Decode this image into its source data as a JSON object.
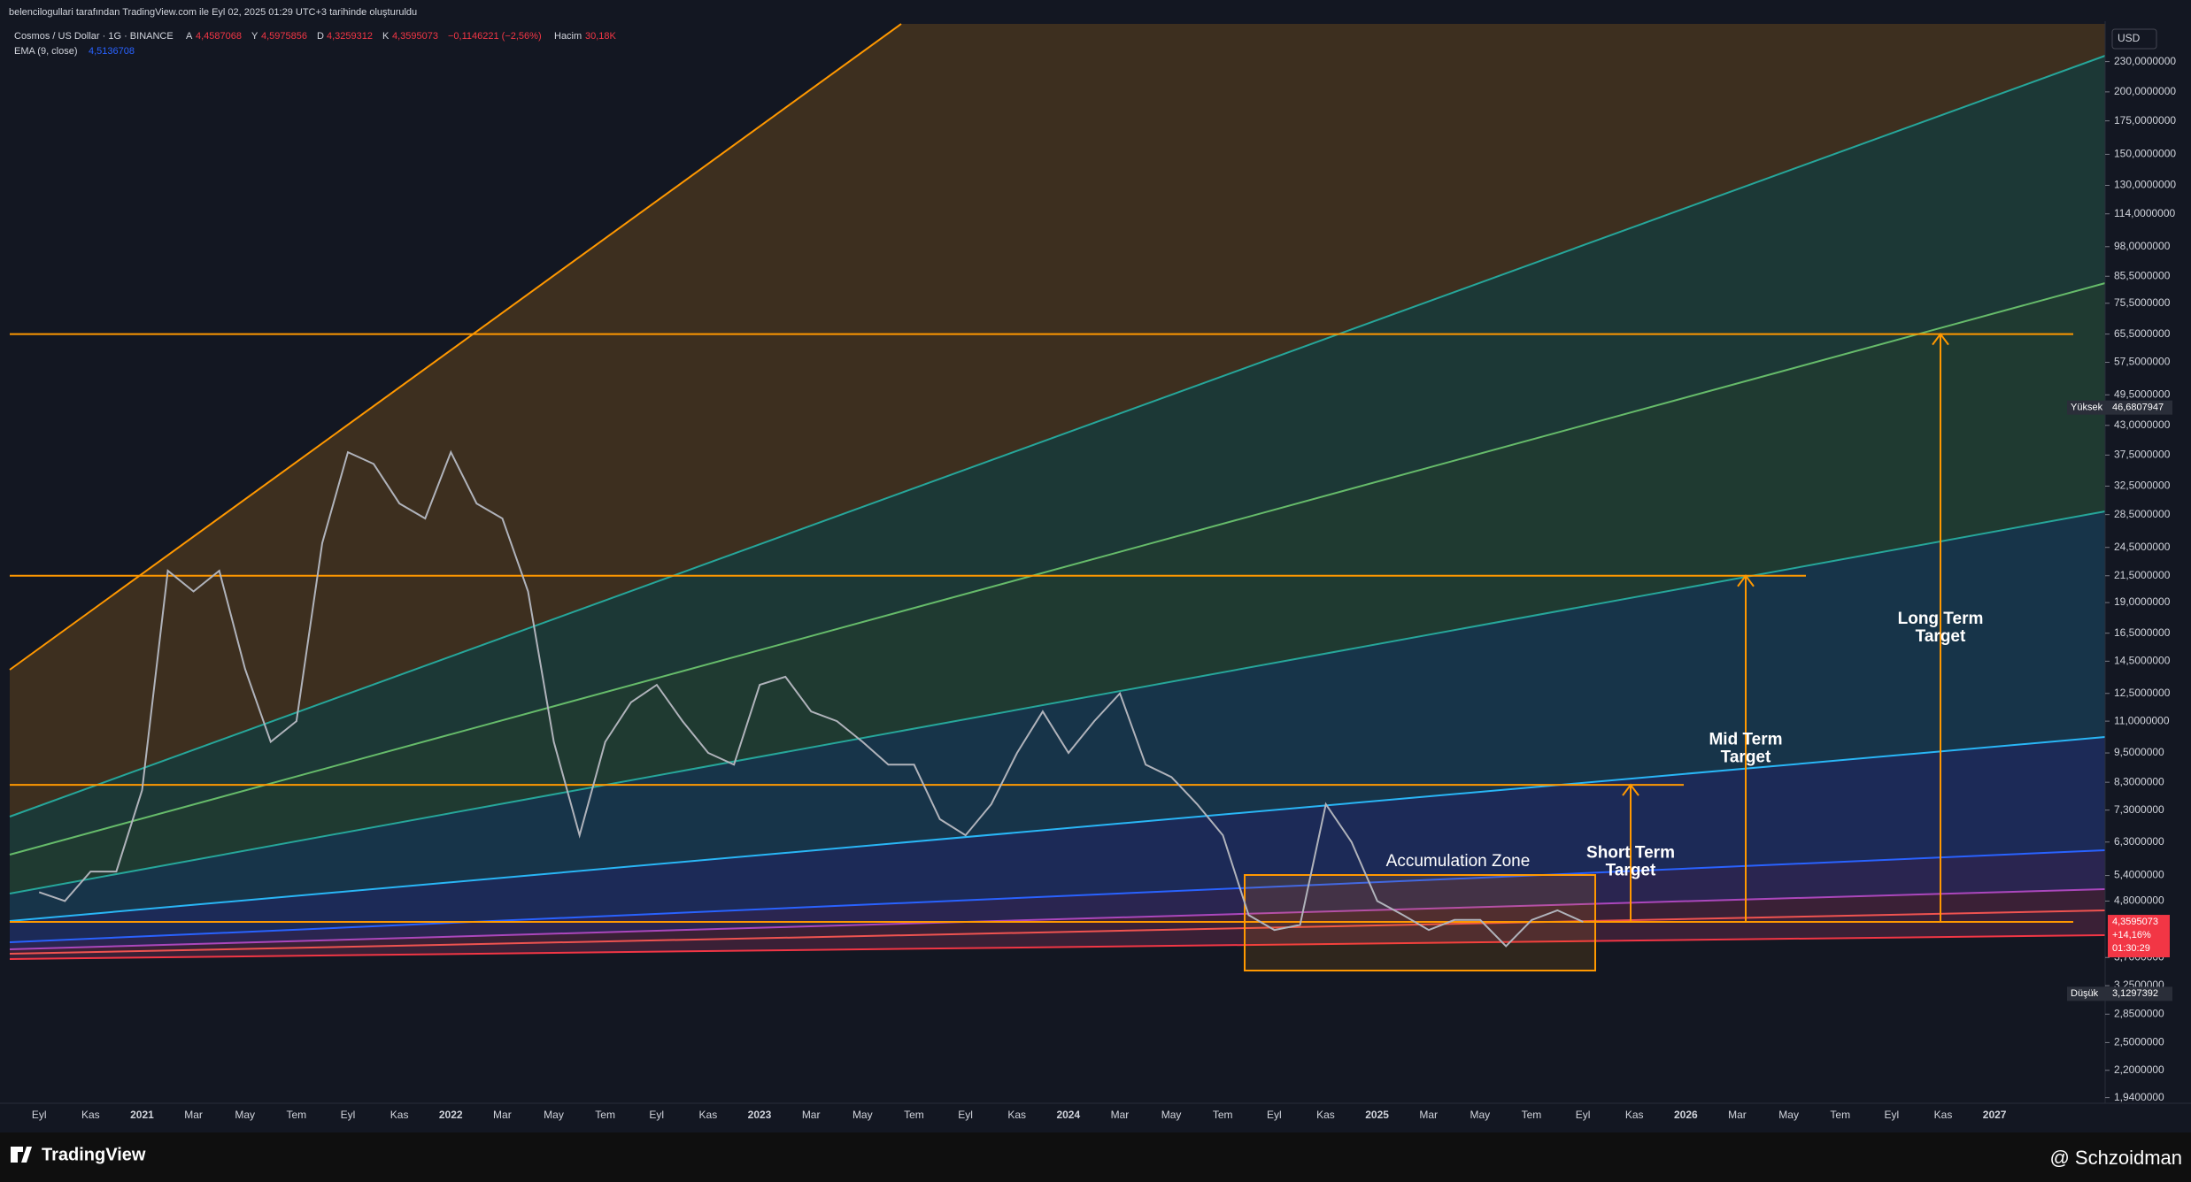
{
  "header": {
    "credit": "belencilogullari tarafından TradingView.com ile Eyl 02, 2025 01:29 UTC+3 tarihinde oluşturuldu"
  },
  "legend": {
    "symbol": "Cosmos / US Dollar · 1G · BINANCE",
    "ohlc": [
      {
        "label": "A",
        "value": "4,4587068"
      },
      {
        "label": "Y",
        "value": "4,5975856"
      },
      {
        "label": "D",
        "value": "4,3259312"
      },
      {
        "label": "K",
        "value": "4,3595073"
      }
    ],
    "change": "−0,1146221 (−2,56%)",
    "volume_label": "Hacim",
    "volume": "30,18K",
    "ema_label": "EMA (9, close)",
    "ema_value": "4,5136708"
  },
  "chart_data": {
    "type": "line",
    "y_scale": "log",
    "currency": "USD",
    "color": "#b0b3bb",
    "ylim": [
      1.89,
      277
    ],
    "yticks": [
      {
        "value": 230,
        "label": "230,0000000"
      },
      {
        "value": 200,
        "label": "200,0000000"
      },
      {
        "value": 175,
        "label": "175,0000000"
      },
      {
        "value": 150,
        "label": "150,0000000"
      },
      {
        "value": 130,
        "label": "130,0000000"
      },
      {
        "value": 114,
        "label": "114,0000000"
      },
      {
        "value": 98,
        "label": "98,0000000"
      },
      {
        "value": 85.5,
        "label": "85,5000000"
      },
      {
        "value": 75.5,
        "label": "75,5000000"
      },
      {
        "value": 65.5,
        "label": "65,5000000"
      },
      {
        "value": 57.5,
        "label": "57,5000000"
      },
      {
        "value": 49.5,
        "label": "49,5000000"
      },
      {
        "value": 43,
        "label": "43,0000000"
      },
      {
        "value": 37.5,
        "label": "37,5000000"
      },
      {
        "value": 32.5,
        "label": "32,5000000"
      },
      {
        "value": 28.5,
        "label": "28,5000000"
      },
      {
        "value": 24.5,
        "label": "24,5000000"
      },
      {
        "value": 21.5,
        "label": "21,5000000"
      },
      {
        "value": 19,
        "label": "19,0000000"
      },
      {
        "value": 16.5,
        "label": "16,5000000"
      },
      {
        "value": 14.5,
        "label": "14,5000000"
      },
      {
        "value": 12.5,
        "label": "12,5000000"
      },
      {
        "value": 11,
        "label": "11,0000000"
      },
      {
        "value": 9.5,
        "label": "9,5000000"
      },
      {
        "value": 8.3,
        "label": "8,3000000"
      },
      {
        "value": 7.3,
        "label": "7,3000000"
      },
      {
        "value": 6.3,
        "label": "6,3000000"
      },
      {
        "value": 5.4,
        "label": "5,4000000"
      },
      {
        "value": 4.8,
        "label": "4,8000000"
      },
      {
        "value": 3.7,
        "label": "3,7000000"
      },
      {
        "value": 3.25,
        "label": "3,2500000"
      },
      {
        "value": 2.85,
        "label": "2,8500000"
      },
      {
        "value": 2.5,
        "label": "2,5000000"
      },
      {
        "value": 2.2,
        "label": "2,2000000"
      },
      {
        "value": 1.94,
        "label": "1,9400000"
      }
    ],
    "x_labels": [
      "Eyl",
      "Kas",
      "2021",
      "Mar",
      "May",
      "Tem",
      "Eyl",
      "Kas",
      "2022",
      "Mar",
      "May",
      "Tem",
      "Eyl",
      "Kas",
      "2023",
      "Mar",
      "May",
      "Tem",
      "Eyl",
      "Kas",
      "2024",
      "Mar",
      "May",
      "Tem",
      "Eyl",
      "Kas",
      "2025",
      "Mar",
      "May",
      "Tem",
      "Eyl",
      "Kas",
      "2026",
      "Mar",
      "May",
      "Tem",
      "Eyl",
      "Kas",
      "2027"
    ],
    "x": [
      "2020-09",
      "2020-10",
      "2020-11",
      "2020-12",
      "2021-01",
      "2021-02",
      "2021-03",
      "2021-04",
      "2021-05",
      "2021-06",
      "2021-07",
      "2021-08",
      "2021-09",
      "2021-10",
      "2021-11",
      "2021-12",
      "2022-01",
      "2022-02",
      "2022-03",
      "2022-04",
      "2022-05",
      "2022-06",
      "2022-07",
      "2022-08",
      "2022-09",
      "2022-10",
      "2022-11",
      "2022-12",
      "2023-01",
      "2023-02",
      "2023-03",
      "2023-04",
      "2023-05",
      "2023-06",
      "2023-07",
      "2023-08",
      "2023-09",
      "2023-10",
      "2023-11",
      "2023-12",
      "2024-01",
      "2024-02",
      "2024-03",
      "2024-04",
      "2024-05",
      "2024-06",
      "2024-07",
      "2024-08",
      "2024-09",
      "2024-10",
      "2024-11",
      "2024-12",
      "2025-01",
      "2025-02",
      "2025-03",
      "2025-04",
      "2025-05",
      "2025-06",
      "2025-07",
      "2025-08",
      "2025-09"
    ],
    "values": [
      5.0,
      4.8,
      5.5,
      5.5,
      8,
      22,
      20,
      22,
      14,
      10,
      11,
      25,
      38,
      36,
      30,
      28,
      38,
      30,
      28,
      20,
      10,
      6.5,
      10,
      12,
      13,
      11,
      9.5,
      9,
      13,
      13.5,
      11.5,
      11,
      10,
      9,
      9,
      7,
      6.5,
      7.5,
      9.5,
      11.5,
      9.5,
      11,
      12.5,
      9,
      8.5,
      7.5,
      6.5,
      4.5,
      4.2,
      4.3,
      7.5,
      6.3,
      4.8,
      4.5,
      4.2,
      4.4,
      4.4,
      3.9,
      4.4,
      4.6,
      4.36
    ],
    "levels": [
      65.5,
      21.5,
      8.2,
      4.36
    ],
    "high": {
      "label": "Yüksek",
      "value": 46.6807947,
      "value_label": "46,6807947"
    },
    "low": {
      "label": "Düşük",
      "value": 3.1297392,
      "value_label": "3,1297392"
    },
    "last": {
      "value": 4.3595073,
      "value_label": "4,3595073",
      "change": "+14,16%",
      "countdown": "01:30:29"
    },
    "annotations": {
      "zone": "Accumulation Zone",
      "short": [
        "Short Term",
        "Target"
      ],
      "mid": [
        "Mid Term",
        "Target"
      ],
      "long": [
        "Long Term",
        "Target"
      ]
    }
  },
  "footer": {
    "brand": "TradingView",
    "author": "@ Schzoidman"
  }
}
